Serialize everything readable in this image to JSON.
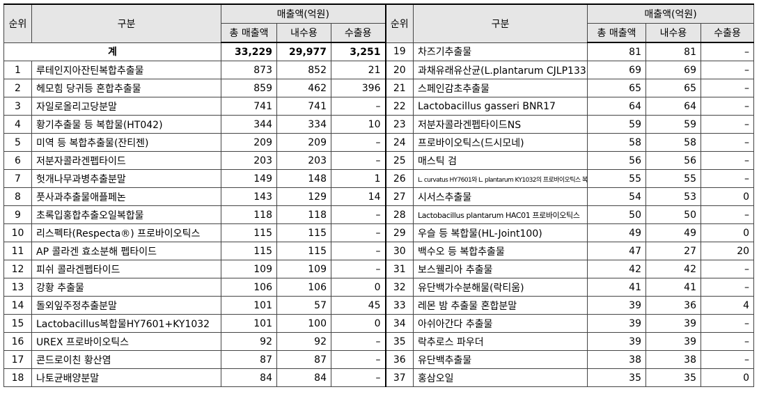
{
  "header": {
    "rank": "순위",
    "category": "구분",
    "sales_group": "매출액(억원)",
    "total_sales": "총 매출액",
    "domestic": "내수용",
    "export": "수출용"
  },
  "summary": {
    "label": "계",
    "total": "33,229",
    "domestic": "29,977",
    "export": "3,251"
  },
  "left_rows": [
    {
      "rank": "1",
      "name": "루테인지아잔틴복합추출물",
      "total": "873",
      "domestic": "852",
      "export": "21"
    },
    {
      "rank": "2",
      "name": "헤모힘 당귀등 혼합추출물",
      "total": "859",
      "domestic": "462",
      "export": "396"
    },
    {
      "rank": "3",
      "name": "자일로올리고당분말",
      "total": "741",
      "domestic": "741",
      "export": "–"
    },
    {
      "rank": "4",
      "name": "황기추출물 등 복합물(HT042)",
      "total": "344",
      "domestic": "334",
      "export": "10"
    },
    {
      "rank": "5",
      "name": "미역 등 복합추출물(잔티젠)",
      "total": "209",
      "domestic": "209",
      "export": "–"
    },
    {
      "rank": "6",
      "name": "저분자콜라겐펩타이드",
      "total": "203",
      "domestic": "203",
      "export": "–"
    },
    {
      "rank": "7",
      "name": "헛개나무과병추출분말",
      "total": "149",
      "domestic": "148",
      "export": "1"
    },
    {
      "rank": "8",
      "name": "풋사과추출물애플페논",
      "total": "143",
      "domestic": "129",
      "export": "14"
    },
    {
      "rank": "9",
      "name": "초록입홍합추출오일복합물",
      "total": "118",
      "domestic": "118",
      "export": "–"
    },
    {
      "rank": "10",
      "name": "리스펙타(Respecta®) 프로바이오틱스",
      "total": "115",
      "domestic": "115",
      "export": "–"
    },
    {
      "rank": "11",
      "name": "AP 콜라겐 효소분해 펩타이드",
      "total": "115",
      "domestic": "115",
      "export": "–"
    },
    {
      "rank": "12",
      "name": "피쉬 콜라겐펩타이드",
      "total": "109",
      "domestic": "109",
      "export": "–"
    },
    {
      "rank": "13",
      "name": "강황 추출물",
      "total": "106",
      "domestic": "106",
      "export": "0"
    },
    {
      "rank": "14",
      "name": "돌외잎주정추출분말",
      "total": "101",
      "domestic": "57",
      "export": "45"
    },
    {
      "rank": "15",
      "name": "Lactobacillus복합물HY7601+KY1032",
      "total": "101",
      "domestic": "100",
      "export": "0"
    },
    {
      "rank": "16",
      "name": "UREX 프로바이오틱스",
      "total": "92",
      "domestic": "92",
      "export": "–"
    },
    {
      "rank": "17",
      "name": "콘드로이친 황산염",
      "total": "87",
      "domestic": "87",
      "export": "–"
    },
    {
      "rank": "18",
      "name": "나토균배양분말",
      "total": "84",
      "domestic": "84",
      "export": "–"
    }
  ],
  "right_rows": [
    {
      "rank": "19",
      "name": "차즈기추출물",
      "total": "81",
      "domestic": "81",
      "export": "–"
    },
    {
      "rank": "20",
      "name": "과채유래유산균(L.plantarum CJLP133)",
      "total": "69",
      "domestic": "69",
      "export": "–"
    },
    {
      "rank": "21",
      "name": "스페인감초추출물",
      "total": "65",
      "domestic": "65",
      "export": "–"
    },
    {
      "rank": "22",
      "name": "Lactobacillus gasseri BNR17",
      "total": "64",
      "domestic": "64",
      "export": "–"
    },
    {
      "rank": "23",
      "name": "저분자콜라겐펩타이드NS",
      "total": "59",
      "domestic": "59",
      "export": "–"
    },
    {
      "rank": "24",
      "name": "프로바이오틱스(드시모네)",
      "total": "58",
      "domestic": "58",
      "export": "–"
    },
    {
      "rank": "25",
      "name": "매스틱 검",
      "total": "56",
      "domestic": "56",
      "export": "–"
    },
    {
      "rank": "26",
      "name": "L. curvatus HY7601와 L. plantarum KY1032의 프로바이오틱스 복합물",
      "total": "55",
      "domestic": "55",
      "export": "–"
    },
    {
      "rank": "27",
      "name": "시서스추출물",
      "total": "54",
      "domestic": "53",
      "export": "0"
    },
    {
      "rank": "28",
      "name": "Lactobacillus plantarum HAC01 프로바이오틱스",
      "total": "50",
      "domestic": "50",
      "export": "–"
    },
    {
      "rank": "29",
      "name": "우슬 등 복합물(HL-Joint100)",
      "total": "49",
      "domestic": "49",
      "export": "0"
    },
    {
      "rank": "30",
      "name": "백수오 등 복합추출물",
      "total": "47",
      "domestic": "27",
      "export": "20"
    },
    {
      "rank": "31",
      "name": "보스웰리아 추출물",
      "total": "42",
      "domestic": "42",
      "export": "–"
    },
    {
      "rank": "32",
      "name": "유단백가수분해물(락티움)",
      "total": "41",
      "domestic": "41",
      "export": "–"
    },
    {
      "rank": "33",
      "name": "레몬 밤 추출물 혼합분말",
      "total": "39",
      "domestic": "36",
      "export": "4"
    },
    {
      "rank": "34",
      "name": "아쉬아간다 추출물",
      "total": "39",
      "domestic": "39",
      "export": "–"
    },
    {
      "rank": "35",
      "name": "락추로스 파우더",
      "total": "39",
      "domestic": "39",
      "export": "–"
    },
    {
      "rank": "36",
      "name": "유단백추출물",
      "total": "38",
      "domestic": "38",
      "export": "–"
    },
    {
      "rank": "37",
      "name": "홍삼오일",
      "total": "35",
      "domestic": "35",
      "export": "0"
    }
  ]
}
